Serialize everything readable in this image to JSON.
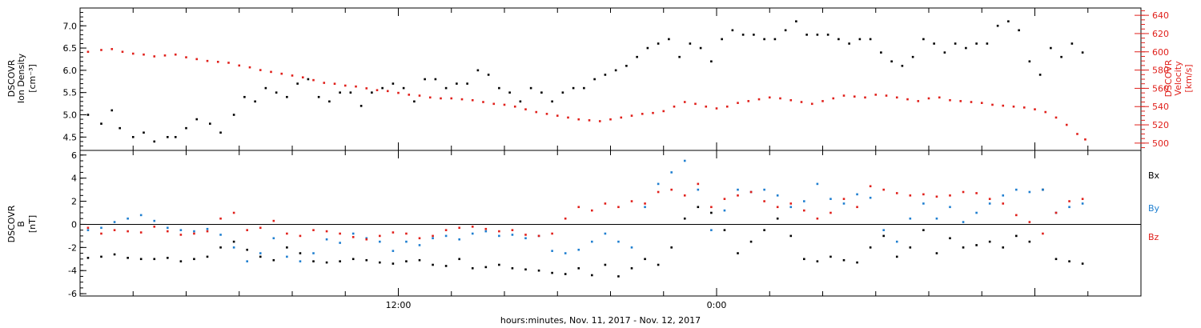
{
  "footer": {
    "xlabel": "hours:minutes, Nov. 11, 2017 - Nov. 12, 2017"
  },
  "x_ticks": [
    "12:00",
    "0:00"
  ],
  "colors": {
    "axes": "#000000",
    "velocity": "#e0201b",
    "bx": "#000000",
    "by": "#1f7fd0",
    "bz": "#e0201b"
  },
  "chart_data": [
    {
      "type": "scatter",
      "title": "",
      "ylabel_lines": [
        "DSCOVR",
        "Ion Density"
      ],
      "ylabel_unit": "[cm⁻³]",
      "ylim": [
        4.2,
        7.4
      ],
      "yticks": [
        4.5,
        5.0,
        5.5,
        6.0,
        6.5,
        7.0
      ],
      "ytick_labels": [
        "4.5",
        "5.0",
        "5.5",
        "6.0",
        "6.5",
        "7.0"
      ],
      "xlim_hours": [
        0,
        40
      ],
      "x_tick_hours": [
        12,
        24
      ],
      "x": [
        0.3,
        0.8,
        1.2,
        1.5,
        2.0,
        2.4,
        2.8,
        3.3,
        3.6,
        4.0,
        4.4,
        4.9,
        5.3,
        5.8,
        6.2,
        6.6,
        7.0,
        7.4,
        7.8,
        8.2,
        8.6,
        9.0,
        9.4,
        9.8,
        10.2,
        10.6,
        11.0,
        11.4,
        11.8,
        12.2,
        12.6,
        13.0,
        13.4,
        13.8,
        14.2,
        14.6,
        15.0,
        15.4,
        15.8,
        16.2,
        16.6,
        17.0,
        17.4,
        17.8,
        18.2,
        18.6,
        19.0,
        19.4,
        19.8,
        20.2,
        20.6,
        21.0,
        21.4,
        21.8,
        22.2,
        22.6,
        23.0,
        23.4,
        23.8,
        24.2,
        24.6,
        25.0,
        25.4,
        25.8,
        26.2,
        26.6,
        27.0,
        27.4,
        27.8,
        28.2,
        28.6,
        29.0,
        29.4,
        29.8,
        30.2,
        30.6,
        31.0,
        31.4,
        31.8,
        32.2,
        32.6,
        33.0,
        33.4,
        33.8,
        34.2,
        34.6,
        35.0,
        35.4,
        35.8,
        36.2,
        36.6,
        37.0,
        37.4,
        37.8
      ],
      "y": [
        5.0,
        4.8,
        5.1,
        4.7,
        4.5,
        4.6,
        4.4,
        4.5,
        4.5,
        4.7,
        4.9,
        4.8,
        4.6,
        5.0,
        5.4,
        5.3,
        5.6,
        5.5,
        5.4,
        5.7,
        5.8,
        5.4,
        5.3,
        5.5,
        5.5,
        5.2,
        5.5,
        5.6,
        5.7,
        5.6,
        5.3,
        5.8,
        5.8,
        5.6,
        5.7,
        5.7,
        6.0,
        5.9,
        5.6,
        5.5,
        5.3,
        5.6,
        5.5,
        5.3,
        5.5,
        5.6,
        5.6,
        5.8,
        5.9,
        6.0,
        6.1,
        6.3,
        6.5,
        6.6,
        6.7,
        6.3,
        6.6,
        6.5,
        6.2,
        6.7,
        6.9,
        6.8,
        6.8,
        6.7,
        6.7,
        6.9,
        7.1,
        6.8,
        6.8,
        6.8,
        6.7,
        6.6,
        6.7,
        6.7,
        6.4,
        6.2,
        6.1,
        6.3,
        6.7,
        6.6,
        6.4,
        6.6,
        6.5,
        6.6,
        6.6,
        7.0,
        7.1,
        6.9,
        6.2,
        5.9,
        6.5,
        6.3,
        6.6,
        6.4
      ]
    },
    {
      "type": "scatter",
      "title": "",
      "ylabel_lines": [
        "DSCOVR",
        "Velocity"
      ],
      "ylabel_unit": "[km/s]",
      "ylim": [
        492,
        648
      ],
      "yticks": [
        500,
        520,
        540,
        560,
        580,
        600,
        620,
        640
      ],
      "ytick_labels": [
        "500",
        "520",
        "540",
        "560",
        "580",
        "600",
        "620",
        "640"
      ],
      "xlim_hours": [
        0,
        40
      ],
      "x": [
        0.3,
        0.8,
        1.2,
        1.6,
        2.0,
        2.4,
        2.8,
        3.2,
        3.6,
        4.0,
        4.4,
        4.8,
        5.2,
        5.6,
        6.0,
        6.4,
        6.8,
        7.2,
        7.6,
        8.0,
        8.4,
        8.8,
        9.2,
        9.6,
        10.0,
        10.4,
        10.8,
        11.2,
        11.6,
        12.0,
        12.4,
        12.8,
        13.2,
        13.6,
        14.0,
        14.4,
        14.8,
        15.2,
        15.6,
        16.0,
        16.4,
        16.8,
        17.2,
        17.6,
        18.0,
        18.4,
        18.8,
        19.2,
        19.6,
        20.0,
        20.4,
        20.8,
        21.2,
        21.6,
        22.0,
        22.4,
        22.8,
        23.2,
        23.6,
        24.0,
        24.4,
        24.8,
        25.2,
        25.6,
        26.0,
        26.4,
        26.8,
        27.2,
        27.6,
        28.0,
        28.4,
        28.8,
        29.2,
        29.6,
        30.0,
        30.4,
        30.8,
        31.2,
        31.6,
        32.0,
        32.4,
        32.8,
        33.2,
        33.6,
        34.0,
        34.4,
        34.8,
        35.2,
        35.6,
        36.0,
        36.4,
        36.8,
        37.2,
        37.6,
        37.9
      ],
      "y": [
        600,
        602,
        603,
        600,
        598,
        597,
        595,
        596,
        597,
        594,
        592,
        590,
        589,
        588,
        585,
        583,
        580,
        578,
        576,
        574,
        572,
        569,
        566,
        565,
        563,
        562,
        560,
        558,
        557,
        555,
        553,
        552,
        550,
        549,
        549,
        548,
        547,
        545,
        543,
        542,
        540,
        537,
        534,
        532,
        530,
        528,
        526,
        525,
        524,
        526,
        528,
        530,
        532,
        533,
        535,
        540,
        545,
        543,
        540,
        538,
        540,
        544,
        546,
        548,
        550,
        549,
        547,
        545,
        543,
        546,
        549,
        552,
        551,
        550,
        553,
        552,
        550,
        548,
        546,
        549,
        550,
        547,
        546,
        545,
        544,
        542,
        541,
        540,
        539,
        537,
        534,
        528,
        520,
        510,
        504
      ]
    },
    {
      "type": "scatter",
      "title": "",
      "ylabel_lines": [
        "DSCOVR",
        "B"
      ],
      "ylabel_unit": "[nT]",
      "ylim": [
        -6.2,
        6.4
      ],
      "yticks": [
        -6,
        -4,
        -2,
        0,
        2,
        4,
        6
      ],
      "ytick_labels": [
        "-6",
        "-4",
        "-2",
        "0",
        "2",
        "4",
        "6"
      ],
      "xlim_hours": [
        0,
        40
      ],
      "x_tick_hours": [
        12,
        24
      ],
      "zero_line": true,
      "series": [
        {
          "name": "Bx",
          "x": [
            0.3,
            0.8,
            1.3,
            1.8,
            2.3,
            2.8,
            3.3,
            3.8,
            4.3,
            4.8,
            5.3,
            5.8,
            6.3,
            6.8,
            7.3,
            7.8,
            8.3,
            8.8,
            9.3,
            9.8,
            10.3,
            10.8,
            11.3,
            11.8,
            12.3,
            12.8,
            13.3,
            13.8,
            14.3,
            14.8,
            15.3,
            15.8,
            16.3,
            16.8,
            17.3,
            17.8,
            18.3,
            18.8,
            19.3,
            19.8,
            20.3,
            20.8,
            21.3,
            21.8,
            22.3,
            22.8,
            23.3,
            23.8,
            24.3,
            24.8,
            25.3,
            25.8,
            26.3,
            26.8,
            27.3,
            27.8,
            28.3,
            28.8,
            29.3,
            29.8,
            30.3,
            30.8,
            31.3,
            31.8,
            32.3,
            32.8,
            33.3,
            33.8,
            34.3,
            34.8,
            35.3,
            35.8,
            36.3,
            36.8,
            37.3,
            37.8
          ],
          "y": [
            -2.9,
            -2.8,
            -2.6,
            -2.9,
            -3.0,
            -3.0,
            -2.9,
            -3.2,
            -3.0,
            -2.8,
            -2.0,
            -1.5,
            -2.2,
            -2.8,
            -3.1,
            -2.0,
            -2.5,
            -3.2,
            -3.3,
            -3.2,
            -3.0,
            -3.1,
            -3.3,
            -3.4,
            -3.2,
            -3.1,
            -3.5,
            -3.6,
            -3.0,
            -3.8,
            -3.7,
            -3.5,
            -3.8,
            -3.9,
            -4.0,
            -4.2,
            -4.3,
            -3.8,
            -4.4,
            -3.5,
            -4.5,
            -3.8,
            -3.0,
            -3.5,
            -2.0,
            0.5,
            1.5,
            1.0,
            -0.5,
            -2.5,
            -1.5,
            -0.5,
            0.5,
            -1.0,
            -3.0,
            -3.2,
            -2.8,
            -3.1,
            -3.3,
            -2.0,
            -1.0,
            -2.8,
            -2.0,
            -0.5,
            -2.5,
            -1.2,
            -2.0,
            -1.8,
            -1.5,
            -2.0,
            -1.0,
            -1.5,
            3.0,
            -3.0,
            -3.2,
            -3.4
          ]
        },
        {
          "name": "By",
          "x": [
            0.3,
            0.8,
            1.3,
            1.8,
            2.3,
            2.8,
            3.3,
            3.8,
            4.3,
            4.8,
            5.3,
            5.8,
            6.3,
            6.8,
            7.3,
            7.8,
            8.3,
            8.8,
            9.3,
            9.8,
            10.3,
            10.8,
            11.3,
            11.8,
            12.3,
            12.8,
            13.3,
            13.8,
            14.3,
            14.8,
            15.3,
            15.8,
            16.3,
            16.8,
            17.3,
            17.8,
            18.3,
            18.8,
            19.3,
            19.8,
            20.3,
            20.8,
            21.3,
            21.8,
            22.3,
            22.8,
            23.3,
            23.8,
            24.3,
            24.8,
            25.3,
            25.8,
            26.3,
            26.8,
            27.3,
            27.8,
            28.3,
            28.8,
            29.3,
            29.8,
            30.3,
            30.8,
            31.3,
            31.8,
            32.3,
            32.8,
            33.3,
            33.8,
            34.3,
            34.8,
            35.3,
            35.8,
            36.3,
            36.8,
            37.3,
            37.8
          ],
          "y": [
            -0.5,
            -0.3,
            0.2,
            0.5,
            0.8,
            0.3,
            -0.3,
            -0.5,
            -0.6,
            -0.4,
            -0.9,
            -2.0,
            -3.2,
            -2.5,
            -1.2,
            -2.8,
            -3.2,
            -2.5,
            -1.3,
            -1.6,
            -0.8,
            -1.2,
            -1.5,
            -2.3,
            -1.5,
            -1.8,
            -1.2,
            -1.0,
            -1.3,
            -0.8,
            -0.6,
            -1.0,
            -0.9,
            -1.2,
            -1.0,
            -2.3,
            -2.5,
            -2.2,
            -1.5,
            -0.8,
            -1.5,
            -2.0,
            1.5,
            3.5,
            4.5,
            5.5,
            3.0,
            -0.5,
            1.2,
            3.0,
            2.8,
            3.0,
            2.5,
            1.5,
            2.0,
            3.5,
            2.2,
            1.8,
            2.6,
            2.3,
            -0.5,
            -1.5,
            0.5,
            1.8,
            0.5,
            1.5,
            0.2,
            1.0,
            1.8,
            2.5,
            3.0,
            2.8,
            3.0,
            1.0,
            1.5,
            1.8
          ]
        },
        {
          "name": "Bz",
          "x": [
            0.3,
            0.8,
            1.3,
            1.8,
            2.3,
            2.8,
            3.3,
            3.8,
            4.3,
            4.8,
            5.3,
            5.8,
            6.3,
            6.8,
            7.3,
            7.8,
            8.3,
            8.8,
            9.3,
            9.8,
            10.3,
            10.8,
            11.3,
            11.8,
            12.3,
            12.8,
            13.3,
            13.8,
            14.3,
            14.8,
            15.3,
            15.8,
            16.3,
            16.8,
            17.3,
            17.8,
            18.3,
            18.8,
            19.3,
            19.8,
            20.3,
            20.8,
            21.3,
            21.8,
            22.3,
            22.8,
            23.3,
            23.8,
            24.3,
            24.8,
            25.3,
            25.8,
            26.3,
            26.8,
            27.3,
            27.8,
            28.3,
            28.8,
            29.3,
            29.8,
            30.3,
            30.8,
            31.3,
            31.8,
            32.3,
            32.8,
            33.3,
            33.8,
            34.3,
            34.8,
            35.3,
            35.8,
            36.3,
            36.8,
            37.3,
            37.8
          ],
          "y": [
            -0.3,
            -0.8,
            -0.5,
            -0.6,
            -0.7,
            -0.2,
            -0.6,
            -0.9,
            -0.8,
            -0.6,
            0.5,
            1.0,
            -0.5,
            -0.3,
            0.3,
            -0.8,
            -1.0,
            -0.5,
            -0.6,
            -0.8,
            -1.1,
            -1.3,
            -1.0,
            -0.7,
            -0.8,
            -1.2,
            -1.0,
            -0.5,
            -0.3,
            -0.2,
            -0.4,
            -0.6,
            -0.5,
            -0.9,
            -1.0,
            -0.8,
            0.5,
            1.5,
            1.2,
            1.8,
            1.5,
            2.0,
            1.8,
            2.8,
            3.0,
            2.5,
            3.5,
            1.5,
            2.2,
            2.5,
            2.8,
            2.0,
            1.5,
            1.8,
            1.2,
            0.5,
            1.0,
            2.2,
            1.5,
            3.3,
            3.0,
            2.7,
            2.5,
            2.6,
            2.4,
            2.5,
            2.8,
            2.7,
            2.2,
            1.8,
            0.8,
            0.2,
            -0.8,
            1.0,
            2.0,
            2.2
          ]
        }
      ]
    }
  ]
}
